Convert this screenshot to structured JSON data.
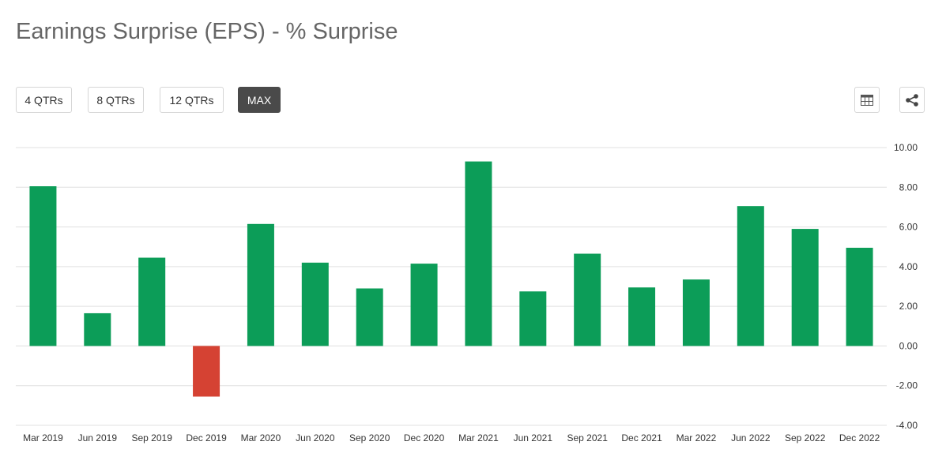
{
  "header": {
    "title": "Earnings Surprise (EPS) - % Surprise"
  },
  "range_buttons": [
    {
      "label": "4 QTRs",
      "active": false
    },
    {
      "label": "8 QTRs",
      "active": false
    },
    {
      "label": "12 QTRs",
      "active": false
    },
    {
      "label": "MAX",
      "active": true
    }
  ],
  "toolbar": {
    "table_icon": "table-icon",
    "share_icon": "share-icon"
  },
  "colors": {
    "positive": "#0c9d58",
    "negative": "#d54233",
    "grid": "#e0e0e0",
    "active_button": "#4a4a4a"
  },
  "chart_data": {
    "type": "bar",
    "title": "",
    "xlabel": "",
    "ylabel": "",
    "categories": [
      "Mar 2019",
      "Jun 2019",
      "Sep 2019",
      "Dec 2019",
      "Mar 2020",
      "Jun 2020",
      "Sep 2020",
      "Dec 2020",
      "Mar 2021",
      "Jun 2021",
      "Sep 2021",
      "Dec 2021",
      "Mar 2022",
      "Jun 2022",
      "Sep 2022",
      "Dec 2022"
    ],
    "values": [
      8.05,
      1.65,
      4.45,
      -2.55,
      6.15,
      4.2,
      2.9,
      4.15,
      9.3,
      2.75,
      4.65,
      2.95,
      3.35,
      7.05,
      5.9,
      4.95
    ],
    "ylim": [
      -4,
      10
    ],
    "yticks": [
      "-4.00",
      "-2.00",
      "0.00",
      "2.00",
      "4.00",
      "6.00",
      "8.00",
      "10.00"
    ],
    "y_axis_side": "right",
    "grid": true,
    "legend": "none"
  }
}
